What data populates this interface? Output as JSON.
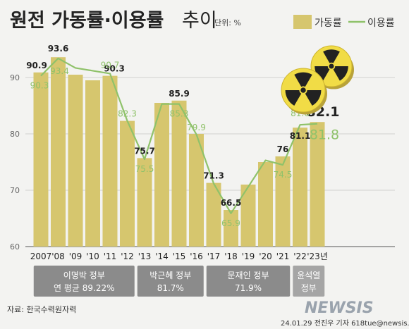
{
  "title": {
    "main": "원전 가동률·이용률",
    "sub": "추이",
    "unit": "단위: %"
  },
  "legend": {
    "bar_label": "가동률",
    "line_label": "이용률"
  },
  "colors": {
    "bar": "#d6c66e",
    "line": "#8fc26a",
    "admin_box": "#8b8b8b",
    "admin_box_last": "#a5a5a5"
  },
  "chart_data": {
    "type": "bar",
    "categories": [
      "2007",
      "'08",
      "'09",
      "'10",
      "'11",
      "'12",
      "'13",
      "'14",
      "'15",
      "'16",
      "'17",
      "'18",
      "'19",
      "'20",
      "'21",
      "'22",
      "'23년"
    ],
    "series": [
      {
        "name": "가동률",
        "type": "bar",
        "values": [
          90.9,
          93.6,
          90.5,
          89.5,
          90.3,
          82.3,
          75.7,
          85.5,
          85.9,
          80.0,
          71.3,
          66.5,
          71.0,
          75.0,
          76,
          81.1,
          82.1
        ],
        "value_labels": [
          "90.9",
          "93.6",
          "",
          "",
          "90.3",
          "",
          "75.7",
          "",
          "85.9",
          "",
          "71.3",
          "66.5",
          "",
          "",
          "76",
          "81.1",
          "82.1"
        ]
      },
      {
        "name": "이용률",
        "type": "line",
        "values": [
          90.3,
          93.4,
          91.7,
          91.2,
          90.7,
          82.3,
          75.5,
          85.3,
          85.3,
          79.9,
          71.2,
          65.9,
          70.6,
          75.3,
          74.5,
          81.6,
          81.8
        ],
        "value_labels": [
          "90.3",
          "93.4",
          "",
          "",
          "90.7",
          "82.3",
          "75.5",
          "",
          "85.3",
          "79.9",
          "",
          "65.9",
          "",
          "",
          "74.5",
          "81.6",
          "81.8"
        ]
      }
    ],
    "yticks": [
      60,
      70,
      80,
      90
    ],
    "ylim": [
      60,
      97
    ],
    "grid": true,
    "legend_position": "top-right"
  },
  "administrations": [
    {
      "label": "이명박 정부",
      "detail": "연 평균 89.22%",
      "from": 0,
      "to": 5
    },
    {
      "label": "박근혜 정부",
      "detail": "81.7%",
      "from": 6,
      "to": 9
    },
    {
      "label": "문재인 정부",
      "detail": "71.9%",
      "from": 10,
      "to": 14
    },
    {
      "label": "윤석열",
      "detail": "정부",
      "from": 15,
      "to": 16
    }
  ],
  "footer": {
    "source": "자료: 한국수력원자력",
    "brand": "NEWSIS",
    "credit": "24.01.29 전진우 기자 618tue@newsis.com"
  },
  "icons": [
    "radiation-icon",
    "radiation-icon"
  ]
}
